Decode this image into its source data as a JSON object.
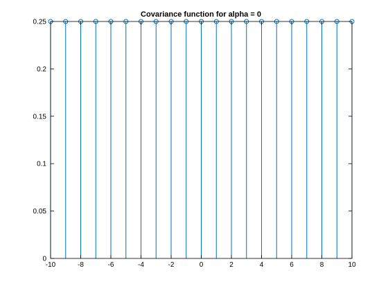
{
  "chart_data": {
    "type": "stem",
    "title": "Covariance function for alpha = 0",
    "xlabel": "",
    "ylabel": "",
    "xlim": [
      -10,
      10
    ],
    "ylim": [
      0,
      0.25
    ],
    "xticks": [
      -10,
      -8,
      -6,
      -4,
      -2,
      0,
      2,
      4,
      6,
      8,
      10
    ],
    "yticks": [
      0,
      0.05,
      0.1,
      0.15,
      0.2,
      0.25
    ],
    "xtick_labels": [
      "-10",
      "-8",
      "-6",
      "-4",
      "-2",
      "0",
      "2",
      "4",
      "6",
      "8",
      "10"
    ],
    "ytick_labels": [
      "0",
      "0.05",
      "0.1",
      "0.15",
      "0.2",
      "0.25"
    ],
    "grid": false,
    "series": [
      {
        "color": "#0072bd",
        "marker": "circle",
        "x": [
          -10,
          -9,
          -8,
          -7,
          -6,
          -5,
          -4,
          -3,
          -2,
          -1,
          0,
          1,
          2,
          3,
          4,
          5,
          6,
          7,
          8,
          9,
          10
        ],
        "y": [
          0.25,
          0.25,
          0.25,
          0.25,
          0.25,
          0.25,
          0.25,
          0.25,
          0.25,
          0.25,
          0.25,
          0.25,
          0.25,
          0.25,
          0.25,
          0.25,
          0.25,
          0.25,
          0.25,
          0.25,
          0.25
        ]
      }
    ]
  }
}
